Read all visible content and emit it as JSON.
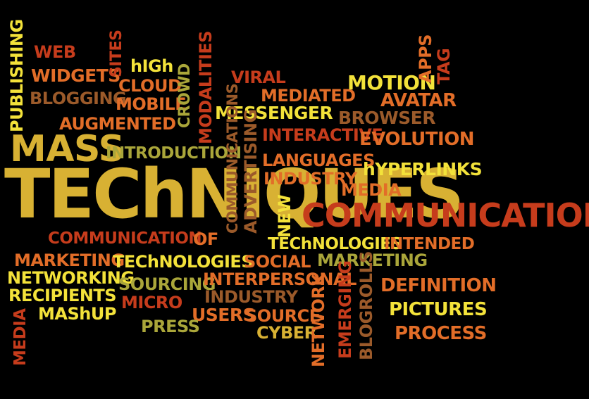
{
  "colors": {
    "background": "#000000",
    "yellow": "#f3e23a",
    "gold": "#d8b133",
    "orange": "#e26d28",
    "red": "#c63c1c",
    "brown": "#9b5a2a",
    "olive": "#aaa63a"
  },
  "words": [
    {
      "id": "web",
      "text": "WEB"
    },
    {
      "id": "widgets",
      "text": "WIDGETS"
    },
    {
      "id": "blogging",
      "text": "BLOGGING"
    },
    {
      "id": "publishing",
      "text": "PUBLISHING"
    },
    {
      "id": "sites",
      "text": "SITES"
    },
    {
      "id": "high",
      "text": "hIGh"
    },
    {
      "id": "cloud",
      "text": "CLOUD"
    },
    {
      "id": "mobile",
      "text": "MOBILE"
    },
    {
      "id": "crowd",
      "text": "CROWD"
    },
    {
      "id": "modalities",
      "text": "MODALITIES"
    },
    {
      "id": "augmented",
      "text": "AUGMENTED"
    },
    {
      "id": "viral",
      "text": "VIRAL"
    },
    {
      "id": "mediated",
      "text": "MEDIATED"
    },
    {
      "id": "messenger",
      "text": "MESSENGER"
    },
    {
      "id": "motion",
      "text": "MOTION"
    },
    {
      "id": "apps",
      "text": "APPS"
    },
    {
      "id": "tag",
      "text": "TAG"
    },
    {
      "id": "avatar",
      "text": "AVATAR"
    },
    {
      "id": "browser",
      "text": "BROWSER"
    },
    {
      "id": "interactive",
      "text": "INTERACTIVE"
    },
    {
      "id": "evolution",
      "text": "EVOLUTION"
    },
    {
      "id": "mass",
      "text": "MASS"
    },
    {
      "id": "introduction",
      "text": "INTRODUCTION"
    },
    {
      "id": "communications",
      "text": "COMMUNICATIONS"
    },
    {
      "id": "advertising",
      "text": "ADVERTISING"
    },
    {
      "id": "languages",
      "text": "LANGUAGES"
    },
    {
      "id": "hyperlinks",
      "text": "hYPERLINKS"
    },
    {
      "id": "industry1",
      "text": "INDUSTRY"
    },
    {
      "id": "techniques",
      "text": "TEChNIQUES"
    },
    {
      "id": "media",
      "text": "MEDIA"
    },
    {
      "id": "new",
      "text": "NEW"
    },
    {
      "id": "communication",
      "text": "COMMUNICATION"
    },
    {
      "id": "communication_small",
      "text": "COMMUNICATION"
    },
    {
      "id": "of",
      "text": "OF"
    },
    {
      "id": "technologies_right",
      "text": "TEChNOLOGIES"
    },
    {
      "id": "intended",
      "text": "INTENDED"
    },
    {
      "id": "marketing_left",
      "text": "MARKETING"
    },
    {
      "id": "technologies_left",
      "text": "TEChNOLOGIES"
    },
    {
      "id": "social",
      "text": "SOCIAL"
    },
    {
      "id": "marketing_right",
      "text": "MARKETING"
    },
    {
      "id": "networking",
      "text": "NETWORKING"
    },
    {
      "id": "sourcing",
      "text": "SOURCING"
    },
    {
      "id": "interpersonal",
      "text": "INTERPERSONAL"
    },
    {
      "id": "recipients",
      "text": "RECIPIENTS"
    },
    {
      "id": "industry2",
      "text": "INDUSTRY"
    },
    {
      "id": "micro",
      "text": "MICRO"
    },
    {
      "id": "definition",
      "text": "DEFINITION"
    },
    {
      "id": "mashup",
      "text": "MAShUP"
    },
    {
      "id": "users",
      "text": "USERS"
    },
    {
      "id": "source",
      "text": "SOURCE"
    },
    {
      "id": "pictures",
      "text": "PICTURES"
    },
    {
      "id": "press",
      "text": "PRESS"
    },
    {
      "id": "cyber",
      "text": "CYBER"
    },
    {
      "id": "process",
      "text": "PROCESS"
    },
    {
      "id": "network",
      "text": "NETWORK"
    },
    {
      "id": "emerging",
      "text": "EMERGING"
    },
    {
      "id": "blogrolls",
      "text": "BLOGROLLS"
    },
    {
      "id": "media_small",
      "text": "MEDIA"
    }
  ]
}
